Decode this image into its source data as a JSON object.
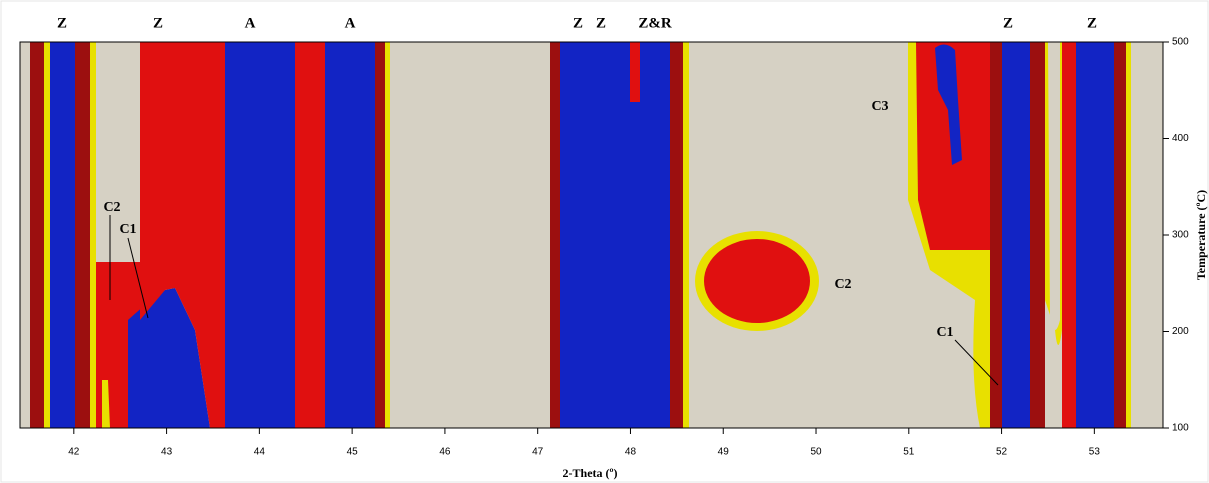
{
  "chart_data": {
    "type": "contour",
    "x_label": "2-Theta (º)",
    "y_label": "Temperature (ºC)",
    "xlim": [
      41.42,
      53.74
    ],
    "xticks": [
      42,
      43,
      44,
      45,
      46,
      47,
      48,
      49,
      50,
      51,
      52,
      53
    ],
    "ylim": [
      100,
      500
    ],
    "yticks": [
      100,
      200,
      300,
      400,
      500
    ],
    "peak_labels": [
      "Z",
      "Z",
      "A",
      "A",
      "Z",
      "Z",
      "Z&R",
      "Z",
      "Z"
    ],
    "annotations": [
      "C2",
      "C1",
      "C3",
      "C2",
      "C1"
    ]
  }
}
